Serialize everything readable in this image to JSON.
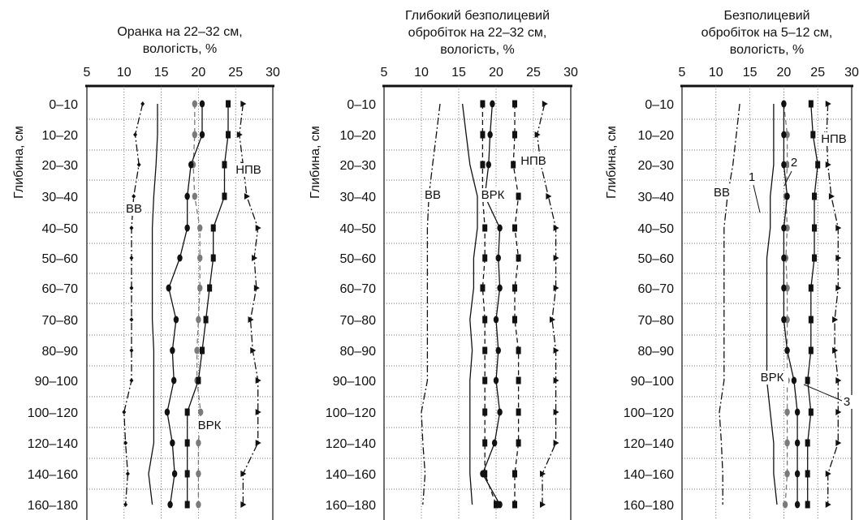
{
  "y_axis_label": "Глибина, см",
  "depth_labels": [
    "0–10",
    "10–20",
    "20–30",
    "30–40",
    "40–50",
    "50–60",
    "60–70",
    "70–80",
    "80–90",
    "90–100",
    "100–120",
    "120–140",
    "140–160",
    "160–180"
  ],
  "x_ticks": [
    "5",
    "10",
    "15",
    "20",
    "25",
    "30"
  ],
  "colors": {
    "ink": "#111111",
    "grey_marker": "#7a7a7a",
    "grid": "#444444"
  },
  "chart_data": [
    {
      "type": "line",
      "title_lines": [
        "Оранка на 22–32 см,",
        "вологість, %"
      ],
      "xlim": [
        5,
        30
      ],
      "ylabel": "Глибина, см",
      "categories": [
        "0–10",
        "10–20",
        "20–30",
        "30–40",
        "40–50",
        "50–60",
        "60–70",
        "70–80",
        "80–90",
        "90–100",
        "100–120",
        "120–140",
        "140–160",
        "160–180"
      ],
      "annotations": [
        "ВВ",
        "НПВ",
        "ВРК"
      ],
      "series": [
        {
          "values": [
            12.5,
            11.5,
            12.0,
            11.3,
            11.0,
            11.0,
            11.0,
            11.0,
            11.0,
            11.0,
            10.0,
            10.2,
            10.5,
            10.2
          ],
          "style": "dashdot-diamond"
        },
        {
          "values": [
            14.5,
            14.5,
            14.3,
            14.0,
            13.8,
            13.8,
            13.8,
            13.8,
            14.0,
            14.0,
            14.0,
            14.0,
            13.3,
            13.8
          ],
          "style": "solid"
        },
        {
          "values": [
            19.5,
            19.5,
            19.3,
            19.5,
            20.2,
            20.2,
            20.2,
            20.0,
            19.8,
            19.8,
            20.3,
            20.0,
            20.0,
            20.0
          ],
          "style": "dashed-grey-circle"
        },
        {
          "values": [
            20.5,
            20.5,
            19.0,
            18.5,
            18.5,
            17.5,
            16.0,
            17.0,
            16.5,
            16.7,
            15.8,
            16.5,
            16.8,
            16.2
          ],
          "style": "solid-circle"
        },
        {
          "values": [
            24.0,
            24.0,
            23.5,
            23.5,
            22.0,
            22.0,
            21.5,
            21.0,
            20.5,
            20.0,
            18.5,
            18.5,
            18.5,
            18.5
          ],
          "style": "solid-square"
        },
        {
          "values": [
            26.0,
            25.5,
            26.0,
            26.5,
            28.0,
            27.5,
            27.8,
            27.0,
            27.3,
            28.0,
            28.0,
            28.0,
            26.0,
            26.0
          ],
          "style": "dashdot-triangle"
        }
      ]
    },
    {
      "type": "line",
      "title_lines": [
        "Глибокий безполицевий",
        "обробіток на 22–32 см,",
        "вологість, %"
      ],
      "xlim": [
        5,
        30
      ],
      "ylabel": "Глибина, см",
      "categories": [
        "0–10",
        "10–20",
        "20–30",
        "30–40",
        "40–50",
        "50–60",
        "60–70",
        "70–80",
        "80–90",
        "90–100",
        "100–120",
        "120–140",
        "140–160",
        "160–180"
      ],
      "annotations": [
        "ВВ",
        "ВРК",
        "НПВ"
      ],
      "series": [
        {
          "values": [
            12.5,
            12.0,
            11.5,
            11.0,
            10.8,
            10.8,
            10.8,
            10.8,
            10.8,
            10.8,
            10.0,
            10.2,
            10.5,
            10.2
          ],
          "style": "dashdot"
        },
        {
          "values": [
            15.5,
            16.0,
            16.5,
            17.5,
            17.5,
            17.0,
            17.0,
            16.5,
            16.8,
            16.5,
            16.5,
            16.5,
            16.5,
            16.8
          ],
          "style": "solid"
        },
        {
          "values": [
            18.2,
            18.2,
            18.2,
            18.2,
            18.5,
            18.5,
            18.2,
            18.5,
            18.5,
            18.5,
            18.5,
            18.5,
            18.5,
            20.0
          ],
          "style": "dashed-square"
        },
        {
          "values": [
            19.5,
            19.2,
            19.0,
            18.5,
            20.5,
            20.3,
            20.5,
            20.0,
            20.3,
            20.0,
            20.5,
            19.8,
            18.2,
            20.5
          ],
          "style": "solid-circle"
        },
        {
          "values": [
            22.5,
            22.5,
            22.3,
            23.0,
            22.5,
            23.0,
            22.5,
            22.5,
            23.0,
            23.0,
            23.0,
            23.0,
            22.5,
            22.5
          ],
          "style": "dashed-square"
        },
        {
          "values": [
            26.5,
            25.5,
            26.0,
            27.0,
            28.0,
            28.0,
            28.0,
            27.5,
            28.0,
            28.0,
            28.0,
            28.0,
            26.2,
            26.2
          ],
          "style": "dashdot-triangle"
        }
      ]
    },
    {
      "type": "line",
      "title_lines": [
        "Безполицевий",
        "обробіток на 5–12 см,",
        "вологість, %"
      ],
      "xlim": [
        5,
        30
      ],
      "ylabel": "Глибина, см",
      "categories": [
        "0–10",
        "10–20",
        "20–30",
        "30–40",
        "40–50",
        "50–60",
        "60–70",
        "70–80",
        "80–90",
        "90–100",
        "100–120",
        "120–140",
        "140–160",
        "160–180"
      ],
      "annotations": [
        "ВВ",
        "НПВ",
        "ВРК",
        "1",
        "2",
        "3"
      ],
      "series": [
        {
          "values": [
            13.5,
            13.0,
            12.5,
            11.7,
            11.2,
            11.2,
            11.2,
            11.2,
            11.2,
            11.2,
            10.5,
            10.8,
            11.0,
            11.0
          ],
          "style": "dashdot"
        },
        {
          "values": [
            18.5,
            18.5,
            18.5,
            18.0,
            18.0,
            17.5,
            17.5,
            17.5,
            17.5,
            17.5,
            18.0,
            18.5,
            18.5,
            19.0
          ],
          "style": "solid"
        },
        {
          "values": [
            20.0,
            20.5,
            20.5,
            20.3,
            20.5,
            20.3,
            20.5,
            20.5,
            20.5,
            20.5,
            20.5,
            20.5,
            20.5,
            20.2
          ],
          "style": "dashed-grey-circle"
        },
        {
          "values": [
            20.0,
            20.0,
            20.0,
            20.5,
            20.0,
            20.0,
            20.0,
            20.0,
            20.5,
            21.5,
            22.0,
            22.0,
            22.0,
            22.0
          ],
          "style": "solid-circle"
        },
        {
          "values": [
            24.0,
            24.3,
            25.0,
            24.5,
            24.5,
            24.5,
            24.0,
            24.0,
            24.0,
            23.5,
            24.0,
            23.5,
            23.5,
            23.5
          ],
          "style": "solid-square"
        },
        {
          "values": [
            26.5,
            26.3,
            26.5,
            27.0,
            28.0,
            28.0,
            28.0,
            27.5,
            27.5,
            28.0,
            28.0,
            28.0,
            26.5,
            26.5
          ],
          "style": "dashdot-triangle"
        }
      ]
    }
  ]
}
